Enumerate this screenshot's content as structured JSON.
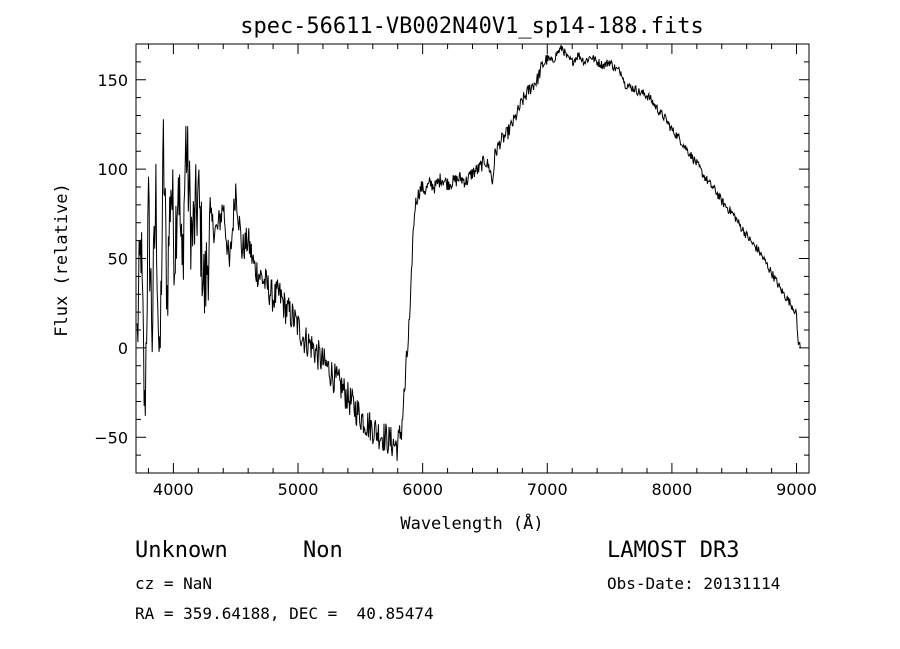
{
  "chart_data": {
    "type": "line",
    "title": "spec-56611-VB002N40V1_sp14-188.fits",
    "xlabel": "Wavelength (Å)",
    "ylabel": "Flux (relative)",
    "xlim": [
      3700,
      9100
    ],
    "ylim": [
      -70,
      170
    ],
    "xticks": [
      4000,
      5000,
      6000,
      7000,
      8000,
      9000
    ],
    "yticks": [
      -50,
      0,
      50,
      100,
      150
    ],
    "grid": false,
    "legend": "none",
    "series": [
      {
        "color": "#000000",
        "x": [
          3710,
          3740,
          3770,
          3800,
          3830,
          3860,
          3890,
          3920,
          3950,
          3980,
          4010,
          4040,
          4070,
          4100,
          4150,
          4200,
          4250,
          4300,
          4350,
          4400,
          4450,
          4500,
          4550,
          4600,
          4650,
          4700,
          4750,
          4800,
          4850,
          4900,
          4950,
          5000,
          5050,
          5100,
          5150,
          5200,
          5250,
          5300,
          5350,
          5400,
          5450,
          5500,
          5550,
          5600,
          5650,
          5700,
          5750,
          5800,
          5830,
          5860,
          5880,
          5900,
          5920,
          5940,
          5960,
          5990,
          6020,
          6060,
          6100,
          6150,
          6200,
          6250,
          6300,
          6350,
          6400,
          6450,
          6500,
          6540,
          6560,
          6580,
          6620,
          6680,
          6740,
          6800,
          6860,
          6920,
          6960,
          7000,
          7040,
          7080,
          7120,
          7160,
          7200,
          7250,
          7300,
          7350,
          7400,
          7450,
          7500,
          7550,
          7600,
          7620,
          7660,
          7700,
          7740,
          7780,
          7820,
          7860,
          7900,
          7950,
          8000,
          8050,
          8100,
          8150,
          8200,
          8250,
          8300,
          8350,
          8400,
          8450,
          8500,
          8550,
          8600,
          8650,
          8700,
          8750,
          8800,
          8840,
          8870,
          8900,
          8940,
          8980,
          9000,
          9010,
          9030
        ],
        "y": [
          5,
          60,
          -40,
          75,
          10,
          85,
          -20,
          110,
          30,
          95,
          55,
          100,
          40,
          115,
          60,
          85,
          30,
          70,
          65,
          80,
          45,
          90,
          55,
          60,
          45,
          40,
          35,
          28,
          30,
          22,
          18,
          12,
          5,
          2,
          -3,
          -8,
          -12,
          -18,
          -22,
          -28,
          -33,
          -38,
          -42,
          -45,
          -48,
          -50,
          -53,
          -55,
          -45,
          -20,
          0,
          20,
          60,
          80,
          85,
          90,
          88,
          92,
          90,
          95,
          92,
          93,
          95,
          93,
          98,
          100,
          105,
          100,
          92,
          108,
          115,
          120,
          128,
          138,
          145,
          150,
          158,
          162,
          160,
          165,
          168,
          162,
          160,
          164,
          160,
          163,
          160,
          158,
          160,
          156,
          154,
          148,
          146,
          145,
          143,
          142,
          140,
          136,
          132,
          128,
          122,
          118,
          113,
          108,
          103,
          97,
          92,
          88,
          82,
          78,
          74,
          68,
          63,
          58,
          54,
          48,
          42,
          37,
          33,
          30,
          26,
          22,
          18,
          5,
          0
        ]
      }
    ]
  },
  "info": {
    "object_class": "Unknown",
    "subclass": "Non",
    "survey": "LAMOST DR3",
    "cz_line": "cz = NaN",
    "obs_date_line": "Obs-Date: 20131114",
    "coords_line": "RA = 359.64188, DEC =  40.85474"
  }
}
